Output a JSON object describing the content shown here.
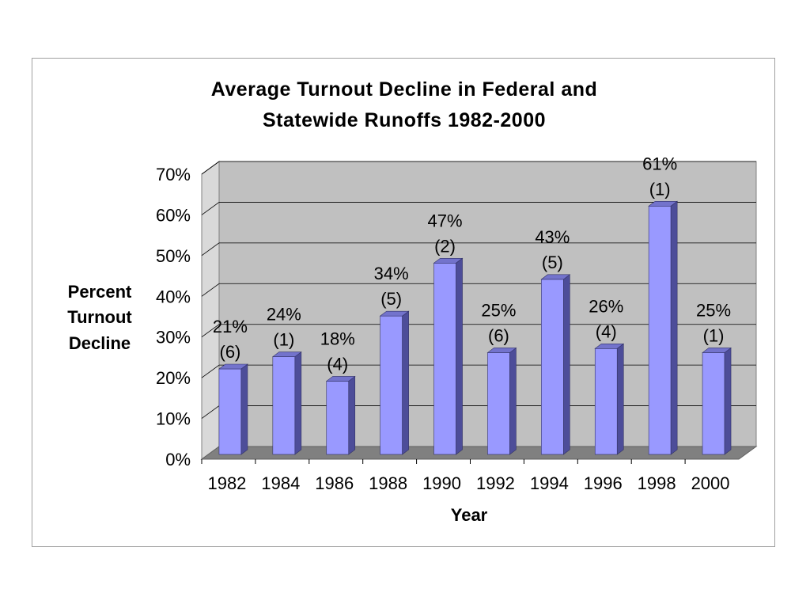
{
  "chart_data": {
    "type": "bar",
    "title_lines": [
      "Average Turnout Decline in Federal and",
      "Statewide Runoffs 1982-2000"
    ],
    "xlabel": "Year",
    "ylabel_lines": [
      "Percent",
      "Turnout",
      "Decline"
    ],
    "categories": [
      "1982",
      "1984",
      "1986",
      "1988",
      "1990",
      "1992",
      "1994",
      "1996",
      "1998",
      "2000"
    ],
    "values": [
      21,
      24,
      18,
      34,
      47,
      25,
      43,
      26,
      61,
      25
    ],
    "counts": [
      "(6)",
      "(1)",
      "(4)",
      "(5)",
      "(2)",
      "(6)",
      "(5)",
      "(4)",
      "(1)",
      "(1)"
    ],
    "value_labels": [
      "21%",
      "24%",
      "18%",
      "34%",
      "47%",
      "25%",
      "43%",
      "26%",
      "61%",
      "25%"
    ],
    "yticks": [
      "0%",
      "10%",
      "20%",
      "30%",
      "40%",
      "50%",
      "60%",
      "70%"
    ],
    "ylim": [
      0,
      70
    ],
    "grid": true,
    "colors": {
      "bar_front": "#9999ff",
      "bar_side": "#4d4d99",
      "bar_top": "#7373cc",
      "back_wall": "#c0c0c0",
      "side_wall": "#d9d9d9",
      "floor": "#808080",
      "gridline": "#000000"
    }
  }
}
